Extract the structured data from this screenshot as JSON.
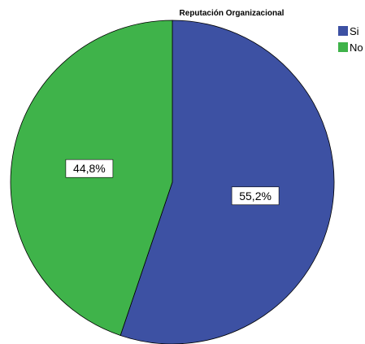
{
  "chart_data": {
    "type": "pie",
    "title": "Reputación Organizacional",
    "categories": [
      "Si",
      "No"
    ],
    "values": [
      55.2,
      44.8
    ],
    "unit": "%",
    "data_labels": [
      "55,2%",
      "44,8%"
    ],
    "colors": [
      "#3d51a3",
      "#3fb34a"
    ],
    "start_angle_deg": 0,
    "direction": "clockwise",
    "legend_position": "top-right"
  }
}
